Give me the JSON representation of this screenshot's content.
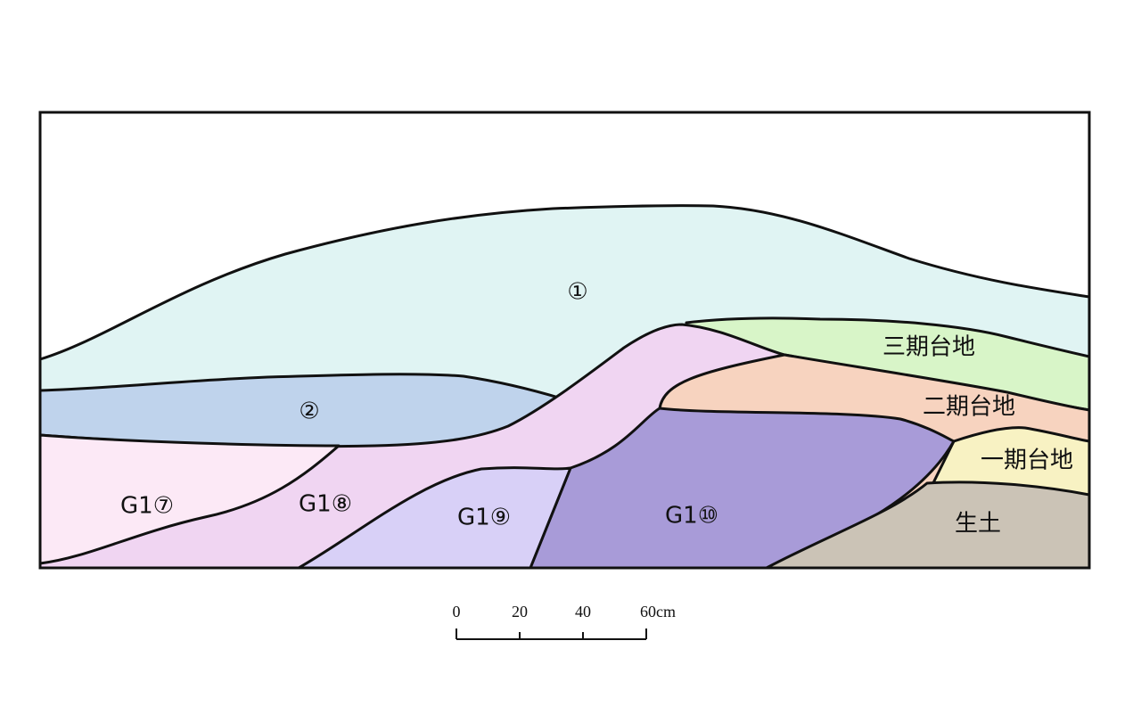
{
  "layers": [
    {
      "label": "①"
    },
    {
      "label": "②"
    },
    {
      "label": "三期台地"
    },
    {
      "label": "二期台地"
    },
    {
      "label": "一期台地"
    },
    {
      "label": "G1⑦"
    },
    {
      "label": "G1⑧"
    },
    {
      "label": "G1⑨"
    },
    {
      "label": "G1⑩"
    },
    {
      "label": "生土"
    }
  ],
  "scale_bar": {
    "labels": [
      "0",
      "20",
      "40",
      "60cm"
    ]
  }
}
